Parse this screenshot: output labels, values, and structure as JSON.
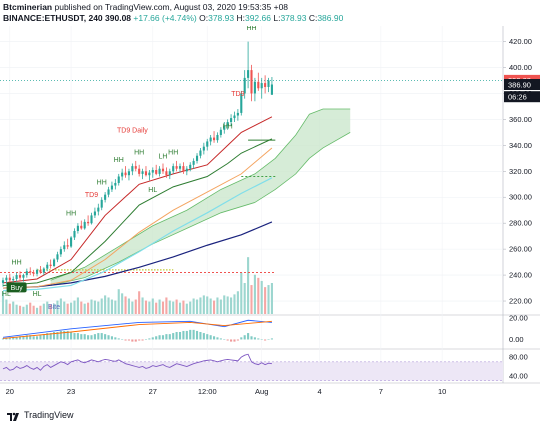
{
  "header": {
    "author": "Btcminerian",
    "published_text": "published on TradingView.com, August 03, 2020 19:53:35 +08",
    "symbol": "BINANCE:ETHUSDT, 240",
    "last": "390.08",
    "change": "+17.66 (+4.74%)",
    "o_label": "O:",
    "o_value": "378.93",
    "h_label": "H:",
    "h_value": "392.66",
    "l_label": "L:",
    "l_value": "378.93",
    "c_label": "C:",
    "c_value": "386.90"
  },
  "footer": {
    "brand": "TradingView"
  },
  "colors": {
    "up": "#26a69a",
    "down": "#ef5350",
    "cloud": "#c8e6c9",
    "ma_short": "#c62828",
    "ma_mid": "#2e7d32",
    "ma_orange": "#f4a460",
    "ma_cyan": "#80deea",
    "ma_navy": "#1a237e",
    "rsi": "#7e57c2"
  },
  "chart_data": {
    "type": "candlestick",
    "y_axis": {
      "range": [
        210,
        432
      ],
      "ticks": [
        "220.00",
        "240.00",
        "260.00",
        "280.00",
        "300.00",
        "320.00",
        "340.00",
        "360.00",
        "380.00",
        "400.00",
        "420.00"
      ]
    },
    "x_axis": {
      "ticks": [
        {
          "label": "20",
          "i": 2
        },
        {
          "label": "23",
          "i": 20
        },
        {
          "label": "27",
          "i": 44
        },
        {
          "label": "12:00",
          "i": 60
        },
        {
          "label": "Aug",
          "i": 76
        },
        {
          "label": "4",
          "i": 93
        },
        {
          "label": "7",
          "i": 111
        },
        {
          "label": "10",
          "i": 129
        }
      ],
      "range": [
        0,
        146
      ]
    },
    "price_labels": [
      {
        "text": "390.08",
        "value": 390.08,
        "kind": "up"
      },
      {
        "text": "386.90",
        "value": 386.9,
        "kind": "dark"
      },
      {
        "text": "06:26",
        "value": 377.5,
        "kind": "dark"
      }
    ],
    "candles": [
      [
        234,
        238,
        231,
        236
      ],
      [
        236,
        240,
        233,
        238
      ],
      [
        238,
        241,
        234,
        236
      ],
      [
        236,
        239,
        232,
        237
      ],
      [
        237,
        242,
        235,
        240
      ],
      [
        240,
        243,
        236,
        238
      ],
      [
        238,
        241,
        235,
        240
      ],
      [
        240,
        245,
        238,
        243
      ],
      [
        243,
        246,
        240,
        242
      ],
      [
        242,
        244,
        239,
        241
      ],
      [
        241,
        245,
        239,
        244
      ],
      [
        244,
        247,
        241,
        242
      ],
      [
        242,
        246,
        240,
        245
      ],
      [
        245,
        250,
        243,
        248
      ],
      [
        248,
        252,
        245,
        247
      ],
      [
        247,
        253,
        246,
        252
      ],
      [
        252,
        258,
        250,
        256
      ],
      [
        256,
        262,
        254,
        260
      ],
      [
        260,
        266,
        258,
        263
      ],
      [
        263,
        268,
        260,
        262
      ],
      [
        262,
        270,
        261,
        269
      ],
      [
        269,
        276,
        267,
        274
      ],
      [
        274,
        280,
        272,
        278
      ],
      [
        278,
        282,
        275,
        276
      ],
      [
        276,
        283,
        275,
        281
      ],
      [
        281,
        286,
        278,
        280
      ],
      [
        280,
        288,
        279,
        286
      ],
      [
        286,
        292,
        284,
        289
      ],
      [
        289,
        295,
        286,
        292
      ],
      [
        292,
        300,
        290,
        298
      ],
      [
        298,
        304,
        296,
        302
      ],
      [
        302,
        308,
        300,
        306
      ],
      [
        306,
        312,
        304,
        309
      ],
      [
        309,
        314,
        306,
        311
      ],
      [
        311,
        318,
        309,
        316
      ],
      [
        316,
        322,
        313,
        319
      ],
      [
        319,
        324,
        315,
        317
      ],
      [
        317,
        322,
        313,
        320
      ],
      [
        320,
        326,
        317,
        324
      ],
      [
        324,
        328,
        320,
        322
      ],
      [
        322,
        325,
        316,
        318
      ],
      [
        318,
        322,
        314,
        320
      ],
      [
        320,
        324,
        316,
        317
      ],
      [
        317,
        321,
        313,
        319
      ],
      [
        319,
        323,
        315,
        321
      ],
      [
        321,
        325,
        317,
        318
      ],
      [
        318,
        324,
        316,
        322
      ],
      [
        322,
        326,
        318,
        320
      ],
      [
        320,
        323,
        315,
        317
      ],
      [
        317,
        322,
        314,
        320
      ],
      [
        320,
        326,
        318,
        324
      ],
      [
        324,
        328,
        320,
        322
      ],
      [
        322,
        326,
        319,
        324
      ],
      [
        324,
        327,
        318,
        320
      ],
      [
        320,
        324,
        317,
        322
      ],
      [
        322,
        327,
        320,
        325
      ],
      [
        325,
        330,
        322,
        328
      ],
      [
        328,
        334,
        326,
        332
      ],
      [
        332,
        338,
        330,
        336
      ],
      [
        336,
        342,
        333,
        339
      ],
      [
        339,
        345,
        336,
        343
      ],
      [
        343,
        348,
        340,
        346
      ],
      [
        346,
        351,
        342,
        344
      ],
      [
        344,
        350,
        342,
        348
      ],
      [
        348,
        354,
        346,
        352
      ],
      [
        352,
        358,
        349,
        355
      ],
      [
        355,
        360,
        352,
        358
      ],
      [
        358,
        364,
        355,
        361
      ],
      [
        361,
        366,
        358,
        363
      ],
      [
        363,
        368,
        359,
        365
      ],
      [
        365,
        382,
        363,
        380
      ],
      [
        380,
        398,
        376,
        392
      ],
      [
        392,
        420,
        384,
        398
      ],
      [
        398,
        402,
        374,
        380
      ],
      [
        380,
        392,
        374,
        389
      ],
      [
        389,
        396,
        382,
        384
      ],
      [
        384,
        392,
        376,
        388
      ],
      [
        388,
        394,
        380,
        385
      ],
      [
        385,
        392,
        381,
        390
      ],
      [
        379,
        392.66,
        378.93,
        386.9
      ]
    ],
    "volume": {
      "range": [
        0,
        60
      ],
      "values": [
        22,
        14,
        10,
        12,
        9,
        8,
        7,
        9,
        11,
        8,
        6,
        8,
        10,
        12,
        9,
        10,
        13,
        15,
        12,
        10,
        11,
        13,
        16,
        12,
        10,
        11,
        14,
        13,
        12,
        15,
        18,
        16,
        14,
        13,
        24,
        20,
        17,
        15,
        12,
        14,
        22,
        16,
        13,
        12,
        15,
        11,
        14,
        12,
        16,
        13,
        12,
        14,
        11,
        13,
        10,
        12,
        15,
        14,
        16,
        18,
        17,
        15,
        13,
        16,
        14,
        18,
        17,
        16,
        19,
        22,
        40,
        30,
        55,
        28,
        38,
        35,
        32,
        26,
        28,
        30
      ]
    },
    "indicators": {
      "ma_short": [
        [
          0,
          234
        ],
        [
          10,
          237
        ],
        [
          20,
          252
        ],
        [
          30,
          286
        ],
        [
          40,
          310
        ],
        [
          50,
          318
        ],
        [
          60,
          325
        ],
        [
          66,
          340
        ],
        [
          70,
          350
        ],
        [
          79,
          362
        ]
      ],
      "ma_mid": [
        [
          0,
          232
        ],
        [
          10,
          234
        ],
        [
          20,
          242
        ],
        [
          30,
          266
        ],
        [
          40,
          294
        ],
        [
          50,
          308
        ],
        [
          60,
          316
        ],
        [
          66,
          326
        ],
        [
          70,
          334
        ],
        [
          79,
          345
        ]
      ],
      "ma_orange": [
        [
          0,
          230
        ],
        [
          10,
          231
        ],
        [
          20,
          236
        ],
        [
          30,
          252
        ],
        [
          40,
          273
        ],
        [
          50,
          290
        ],
        [
          60,
          304
        ],
        [
          70,
          318
        ],
        [
          79,
          338
        ]
      ],
      "ma_cyan": [
        [
          0,
          228
        ],
        [
          10,
          229
        ],
        [
          20,
          232
        ],
        [
          30,
          243
        ],
        [
          40,
          258
        ],
        [
          50,
          274
        ],
        [
          60,
          288
        ],
        [
          70,
          303
        ],
        [
          79,
          315
        ]
      ],
      "ma_navy": [
        [
          0,
          230
        ],
        [
          10,
          231
        ],
        [
          20,
          234
        ],
        [
          30,
          239
        ],
        [
          40,
          246
        ],
        [
          50,
          254
        ],
        [
          60,
          263
        ],
        [
          70,
          271
        ],
        [
          79,
          281
        ]
      ],
      "cloud_top": [
        [
          14,
          236
        ],
        [
          24,
          246
        ],
        [
          34,
          262
        ],
        [
          44,
          278
        ],
        [
          54,
          290
        ],
        [
          64,
          306
        ],
        [
          74,
          318
        ],
        [
          80,
          330
        ],
        [
          86,
          348
        ],
        [
          90,
          364
        ],
        [
          94,
          368
        ],
        [
          102,
          368
        ]
      ],
      "cloud_bottom": [
        [
          14,
          232
        ],
        [
          24,
          238
        ],
        [
          34,
          250
        ],
        [
          44,
          264
        ],
        [
          54,
          276
        ],
        [
          64,
          288
        ],
        [
          74,
          296
        ],
        [
          80,
          306
        ],
        [
          86,
          318
        ],
        [
          90,
          330
        ],
        [
          94,
          338
        ],
        [
          102,
          350
        ]
      ],
      "resistance_red": 242,
      "support_orange": 244,
      "dotted_green": 316,
      "hline_teal": 390.08,
      "hline_green": 344
    },
    "annotations": [
      {
        "text": "HH",
        "i": 4,
        "value": 248,
        "kind": "green"
      },
      {
        "text": "HL",
        "i": 1,
        "value": 224,
        "kind": "green"
      },
      {
        "text": "HL",
        "i": 10,
        "value": 224,
        "kind": "green"
      },
      {
        "text": "HH",
        "i": 20,
        "value": 286,
        "kind": "green"
      },
      {
        "text": "HH",
        "i": 29,
        "value": 310,
        "kind": "green"
      },
      {
        "text": "TD9",
        "i": 26,
        "value": 300,
        "kind": "red"
      },
      {
        "text": "HH",
        "i": 34,
        "value": 327,
        "kind": "green"
      },
      {
        "text": "HH",
        "i": 40,
        "value": 333,
        "kind": "green"
      },
      {
        "text": "TD9 Daily",
        "i": 38,
        "value": 350,
        "kind": "red"
      },
      {
        "text": "LH",
        "i": 47,
        "value": 330,
        "kind": "green"
      },
      {
        "text": "HH",
        "i": 50,
        "value": 333,
        "kind": "green"
      },
      {
        "text": "HL",
        "i": 44,
        "value": 304,
        "kind": "green"
      },
      {
        "text": "HH",
        "i": 66,
        "value": 353,
        "kind": "green"
      },
      {
        "text": "TD9",
        "i": 69,
        "value": 378,
        "kind": "red"
      },
      {
        "text": "HH",
        "i": 73,
        "value": 429,
        "kind": "green"
      },
      {
        "text": "Buy",
        "i": 4,
        "value": 229,
        "kind": "buy"
      },
      {
        "text": "Bite",
        "i": 15,
        "value": 214,
        "kind": "blue"
      }
    ],
    "macd": {
      "range": [
        -8,
        22
      ],
      "ticks": [
        "20.00",
        "0.00"
      ],
      "hist": [
        1,
        1,
        2,
        2,
        2,
        3,
        3,
        4,
        4,
        3,
        3,
        4,
        5,
        6,
        6,
        7,
        7,
        8,
        8,
        8,
        7,
        6,
        6,
        5,
        5,
        4,
        4,
        5,
        6,
        6,
        5,
        4,
        3,
        2,
        1,
        0,
        -1,
        -1,
        -2,
        -2,
        -1,
        -1,
        0,
        1,
        2,
        3,
        4,
        4,
        5,
        5,
        6,
        7,
        7,
        8,
        8,
        9,
        9,
        8,
        7,
        6,
        5,
        4,
        3,
        2,
        1,
        0,
        -1,
        -2,
        -2,
        -1,
        2,
        4,
        6,
        3,
        2,
        1,
        0,
        -1,
        0,
        1
      ],
      "macd_line": [
        [
          0,
          2
        ],
        [
          20,
          10
        ],
        [
          40,
          16
        ],
        [
          55,
          17
        ],
        [
          65,
          12
        ],
        [
          72,
          18
        ],
        [
          79,
          16
        ]
      ],
      "signal_line": [
        [
          0,
          1
        ],
        [
          20,
          7
        ],
        [
          40,
          14
        ],
        [
          55,
          16
        ],
        [
          65,
          13
        ],
        [
          72,
          15
        ],
        [
          79,
          17
        ]
      ]
    },
    "rsi": {
      "range": [
        25,
        95
      ],
      "ticks": [
        "80.00",
        "40.00"
      ],
      "band": [
        30,
        70
      ],
      "values": [
        55,
        58,
        52,
        54,
        60,
        56,
        58,
        62,
        57,
        54,
        58,
        52,
        60,
        64,
        58,
        62,
        66,
        70,
        68,
        64,
        70,
        72,
        74,
        70,
        68,
        71,
        74,
        72,
        70,
        73,
        75,
        74,
        72,
        71,
        74,
        70,
        66,
        64,
        62,
        60,
        58,
        60,
        56,
        58,
        62,
        60,
        62,
        64,
        60,
        58,
        62,
        66,
        64,
        62,
        60,
        63,
        66,
        68,
        70,
        72,
        73,
        74,
        72,
        70,
        72,
        74,
        75,
        74,
        73,
        72,
        80,
        84,
        86,
        70,
        66,
        64,
        68,
        64,
        67,
        66
      ]
    }
  }
}
